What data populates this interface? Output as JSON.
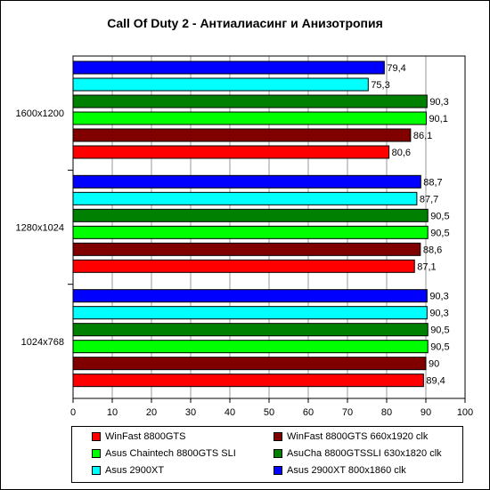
{
  "chart_data": {
    "type": "bar",
    "orientation": "horizontal",
    "title": "Call Of Duty 2 - Антиалиасинг и Анизотропия",
    "xlabel": "",
    "ylabel": "",
    "xlim": [
      0,
      100
    ],
    "x_ticks": [
      "0",
      "10",
      "20",
      "30",
      "40",
      "50",
      "60",
      "70",
      "80",
      "90",
      "100"
    ],
    "grid": true,
    "legend_position": "bottom",
    "categories": [
      "1600x1200",
      "1280x1024",
      "1024x768"
    ],
    "series": [
      {
        "name": "WinFast 8800GTS",
        "color": "#ff0000",
        "values": [
          80.6,
          87.1,
          89.4
        ],
        "labels": [
          "80,6",
          "87,1",
          "89,4"
        ]
      },
      {
        "name": "WinFast 8800GTS 660x1920 clk",
        "color": "#800000",
        "values": [
          86.1,
          88.6,
          90
        ],
        "labels": [
          "86,1",
          "88,6",
          "90"
        ]
      },
      {
        "name": "Asus Chaintech 8800GTS SLI",
        "color": "#00ff00",
        "values": [
          90.1,
          90.5,
          90.5
        ],
        "labels": [
          "90,1",
          "90,5",
          "90,5"
        ]
      },
      {
        "name": "AsuCha 8800GTSSLI 630x1820 clk",
        "color": "#008000",
        "values": [
          90.3,
          90.5,
          90.5
        ],
        "labels": [
          "90,3",
          "90,5",
          "90,5"
        ]
      },
      {
        "name": "Asus 2900XT",
        "color": "#00ffff",
        "values": [
          75.3,
          87.7,
          90.3
        ],
        "labels": [
          "75,3",
          "87,7",
          "90,3"
        ]
      },
      {
        "name": "Asus 2900XT 800x1860 clk",
        "color": "#0000ff",
        "values": [
          79.4,
          88.7,
          90.3
        ],
        "labels": [
          "79,4",
          "88,7",
          "90,3"
        ]
      }
    ]
  }
}
